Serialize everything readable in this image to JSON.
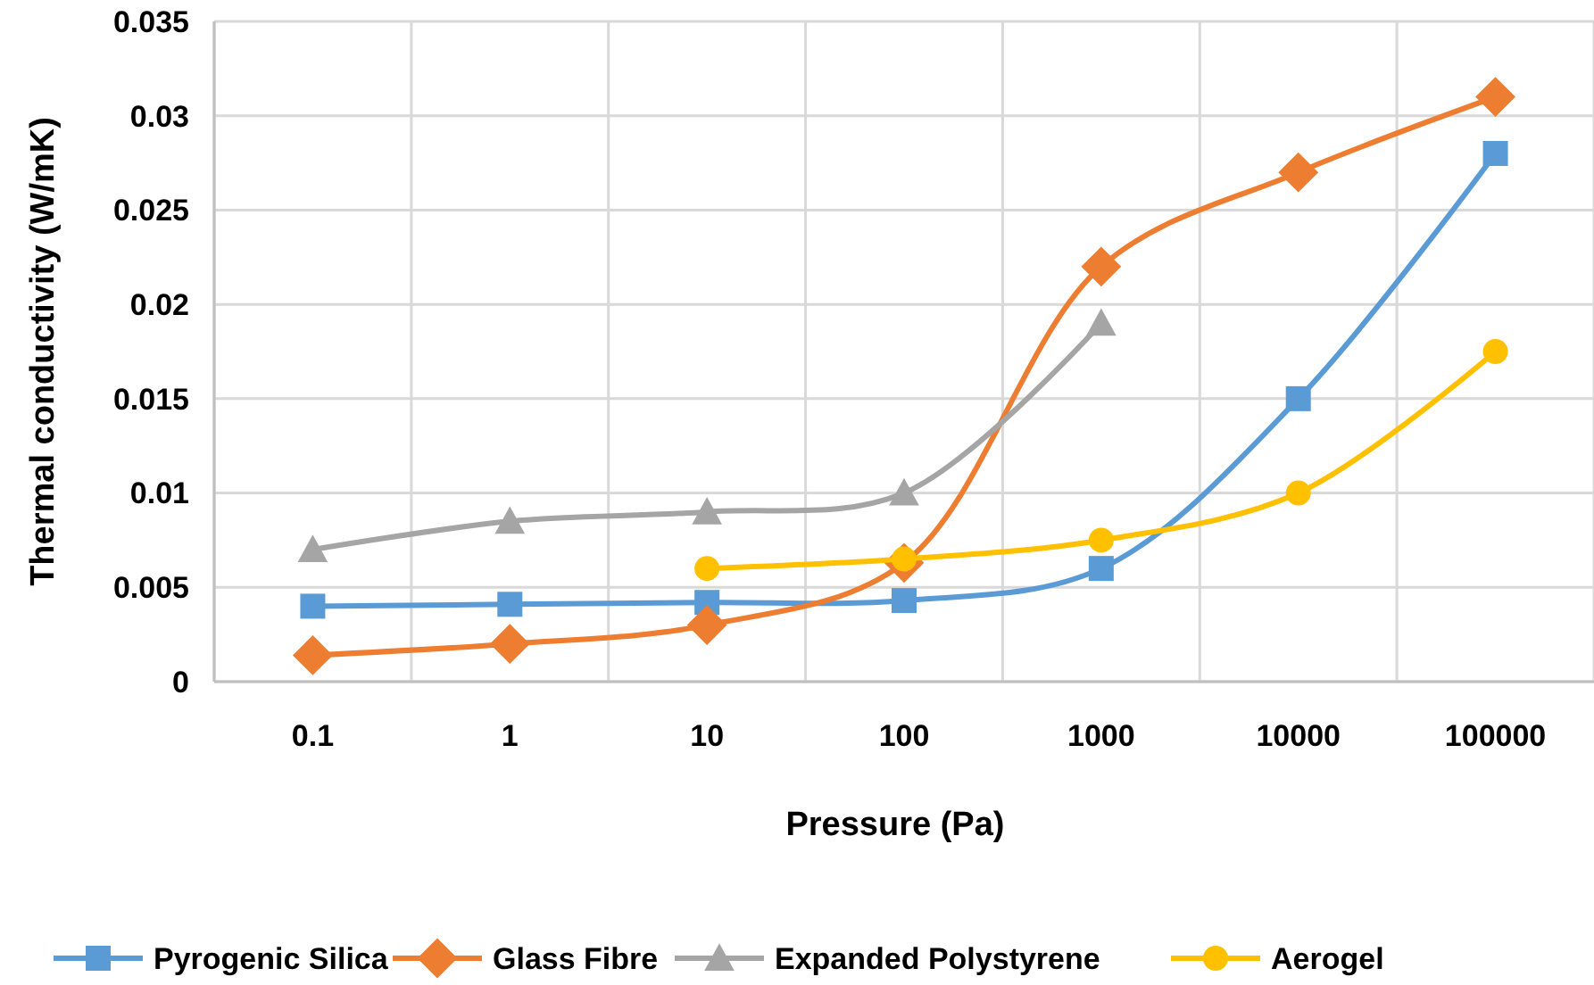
{
  "chart_data": {
    "type": "line",
    "xlabel": "Pressure (Pa)",
    "ylabel": "Thermal conductivity (W/mK)",
    "categories": [
      "0.1",
      "1",
      "10",
      "100",
      "1000",
      "10000",
      "100000"
    ],
    "ylim": [
      0,
      0.035
    ],
    "yticks": [
      {
        "value": 0,
        "label": "0"
      },
      0.005,
      0.01,
      0.015,
      0.02,
      0.025,
      0.03,
      0.035
    ],
    "grid": true,
    "legend": "bottom",
    "series": [
      {
        "name": "Pyrogenic Silica",
        "color": "#5b9bd5",
        "marker": "square",
        "values": [
          0.004,
          0.0041,
          0.0042,
          0.0043,
          0.006,
          0.015,
          0.028
        ]
      },
      {
        "name": "Glass Fibre",
        "color": "#ed7d31",
        "marker": "diamond",
        "values": [
          0.0014,
          0.002,
          0.003,
          0.0063,
          0.022,
          0.027,
          0.031
        ]
      },
      {
        "name": "Expanded Polystyrene",
        "color": "#a5a5a5",
        "marker": "triangle",
        "values": [
          0.007,
          0.0085,
          0.009,
          0.01,
          0.019,
          null,
          null
        ]
      },
      {
        "name": "Aerogel",
        "color": "#ffc000",
        "marker": "circle",
        "values": [
          null,
          null,
          0.006,
          0.0065,
          0.0075,
          0.01,
          0.0175
        ]
      }
    ]
  }
}
